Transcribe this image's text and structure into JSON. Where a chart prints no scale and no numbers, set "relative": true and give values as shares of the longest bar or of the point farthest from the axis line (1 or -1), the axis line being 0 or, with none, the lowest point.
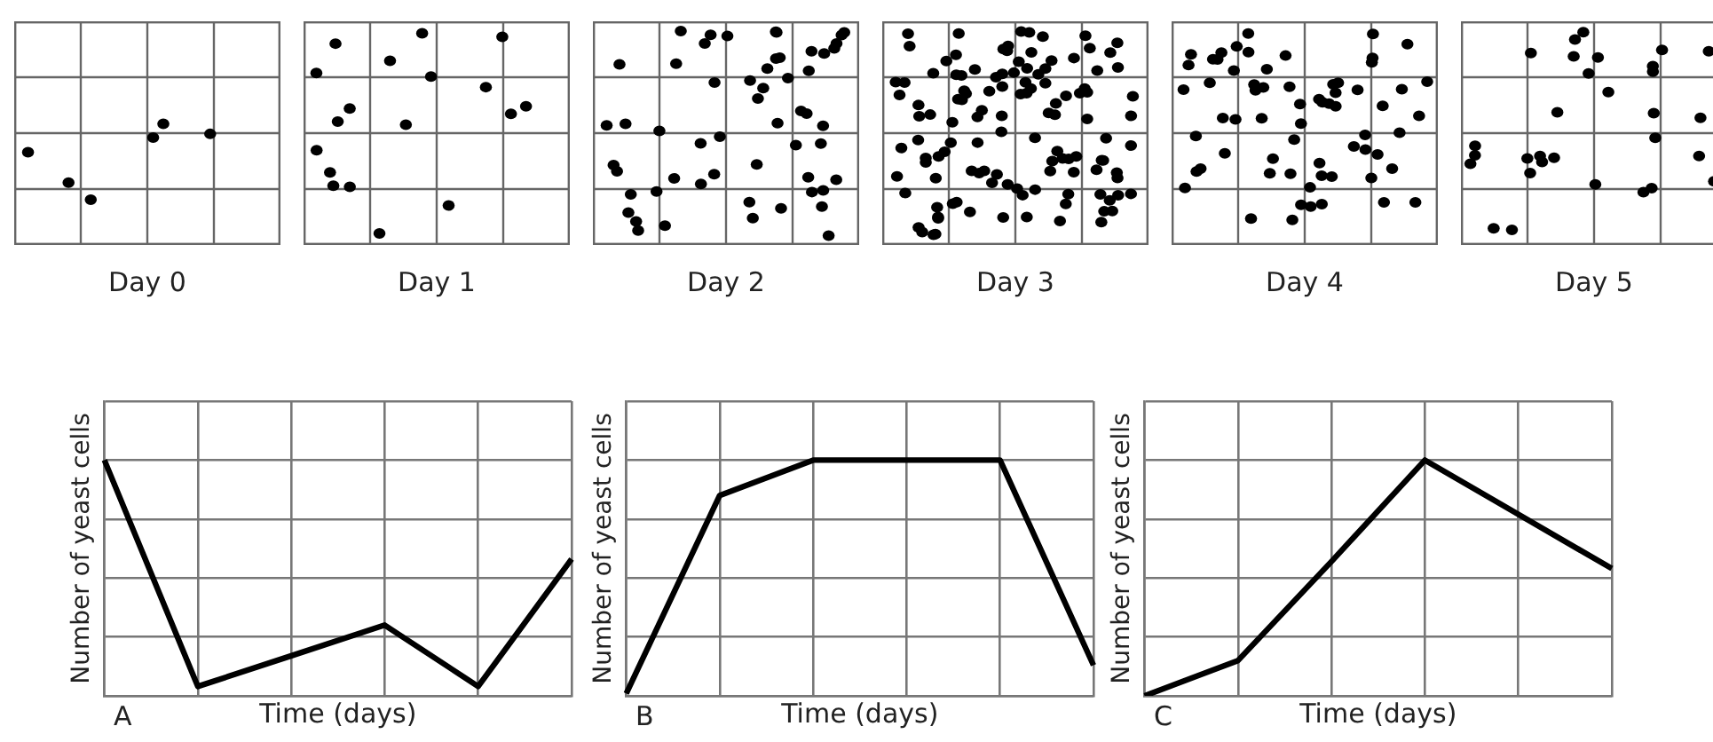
{
  "chart_data": [
    {
      "type": "other",
      "annotations": [
        "Day 0",
        "Day 1",
        "Day 2",
        "Day 3",
        "Day 4",
        "Day 5"
      ]
    },
    {
      "type": "line",
      "title": "A",
      "xlabel": "Time (days)",
      "ylabel": "Number of yeast cells",
      "relative": true,
      "tick_labels": false,
      "categories": [
        null,
        null,
        null,
        null,
        null,
        null
      ],
      "grid": true,
      "marker": "none",
      "line_style": "solid",
      "series": [
        {
          "color": "#000000",
          "values": [
            1,
            0.04,
            0.17,
            0.3,
            0.04,
            0.58
          ]
        }
      ]
    },
    {
      "type": "line",
      "title": "B",
      "xlabel": "Time (days)",
      "ylabel": "Number of yeast cells",
      "relative": true,
      "tick_labels": false,
      "categories": [
        null,
        null,
        null,
        null,
        null,
        null
      ],
      "grid": true,
      "marker": "none",
      "line_style": "solid",
      "series": [
        {
          "color": "#000000",
          "values": [
            0.01,
            0.85,
            1,
            1,
            1,
            0.13
          ]
        }
      ]
    },
    {
      "type": "line",
      "title": "C",
      "xlabel": "Time (days)",
      "ylabel": "Number of yeast cells",
      "relative": true,
      "tick_labels": false,
      "categories": [
        null,
        null,
        null,
        null,
        null,
        null
      ],
      "grid": true,
      "marker": "none",
      "line_style": "solid",
      "series": [
        {
          "color": "#000000",
          "values": [
            0,
            0.15,
            0.57,
            1,
            0.77,
            0.54
          ]
        }
      ]
    }
  ]
}
